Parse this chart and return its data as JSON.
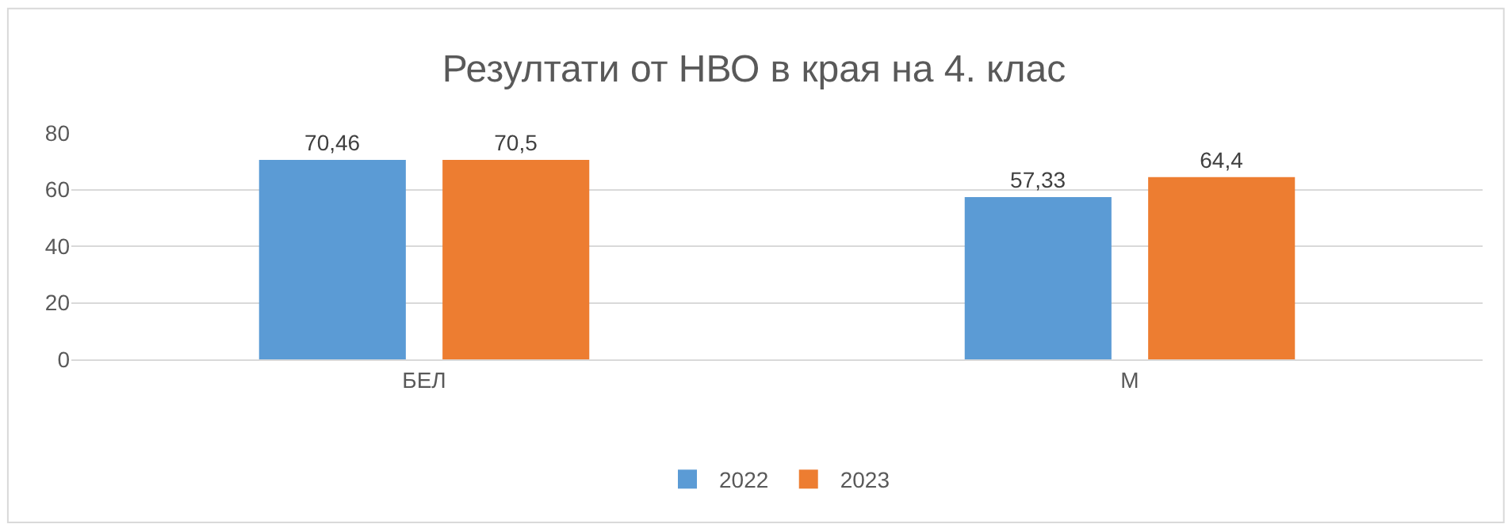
{
  "chart_data": {
    "type": "bar",
    "title": "Резултати от НВО в края на 4. клас",
    "categories": [
      "БЕЛ",
      "М"
    ],
    "series": [
      {
        "name": "2022",
        "color": "#5b9bd5",
        "values": [
          70.46,
          57.33
        ],
        "value_labels": [
          "70,46",
          "57,33"
        ]
      },
      {
        "name": "2023",
        "color": "#ed7d31",
        "values": [
          70.5,
          64.4
        ],
        "value_labels": [
          "70,5",
          "64,4"
        ]
      }
    ],
    "ylim": [
      0,
      80
    ],
    "yticks": [
      0,
      20,
      40,
      60,
      80
    ],
    "grid": "y",
    "legend": "bottom"
  }
}
